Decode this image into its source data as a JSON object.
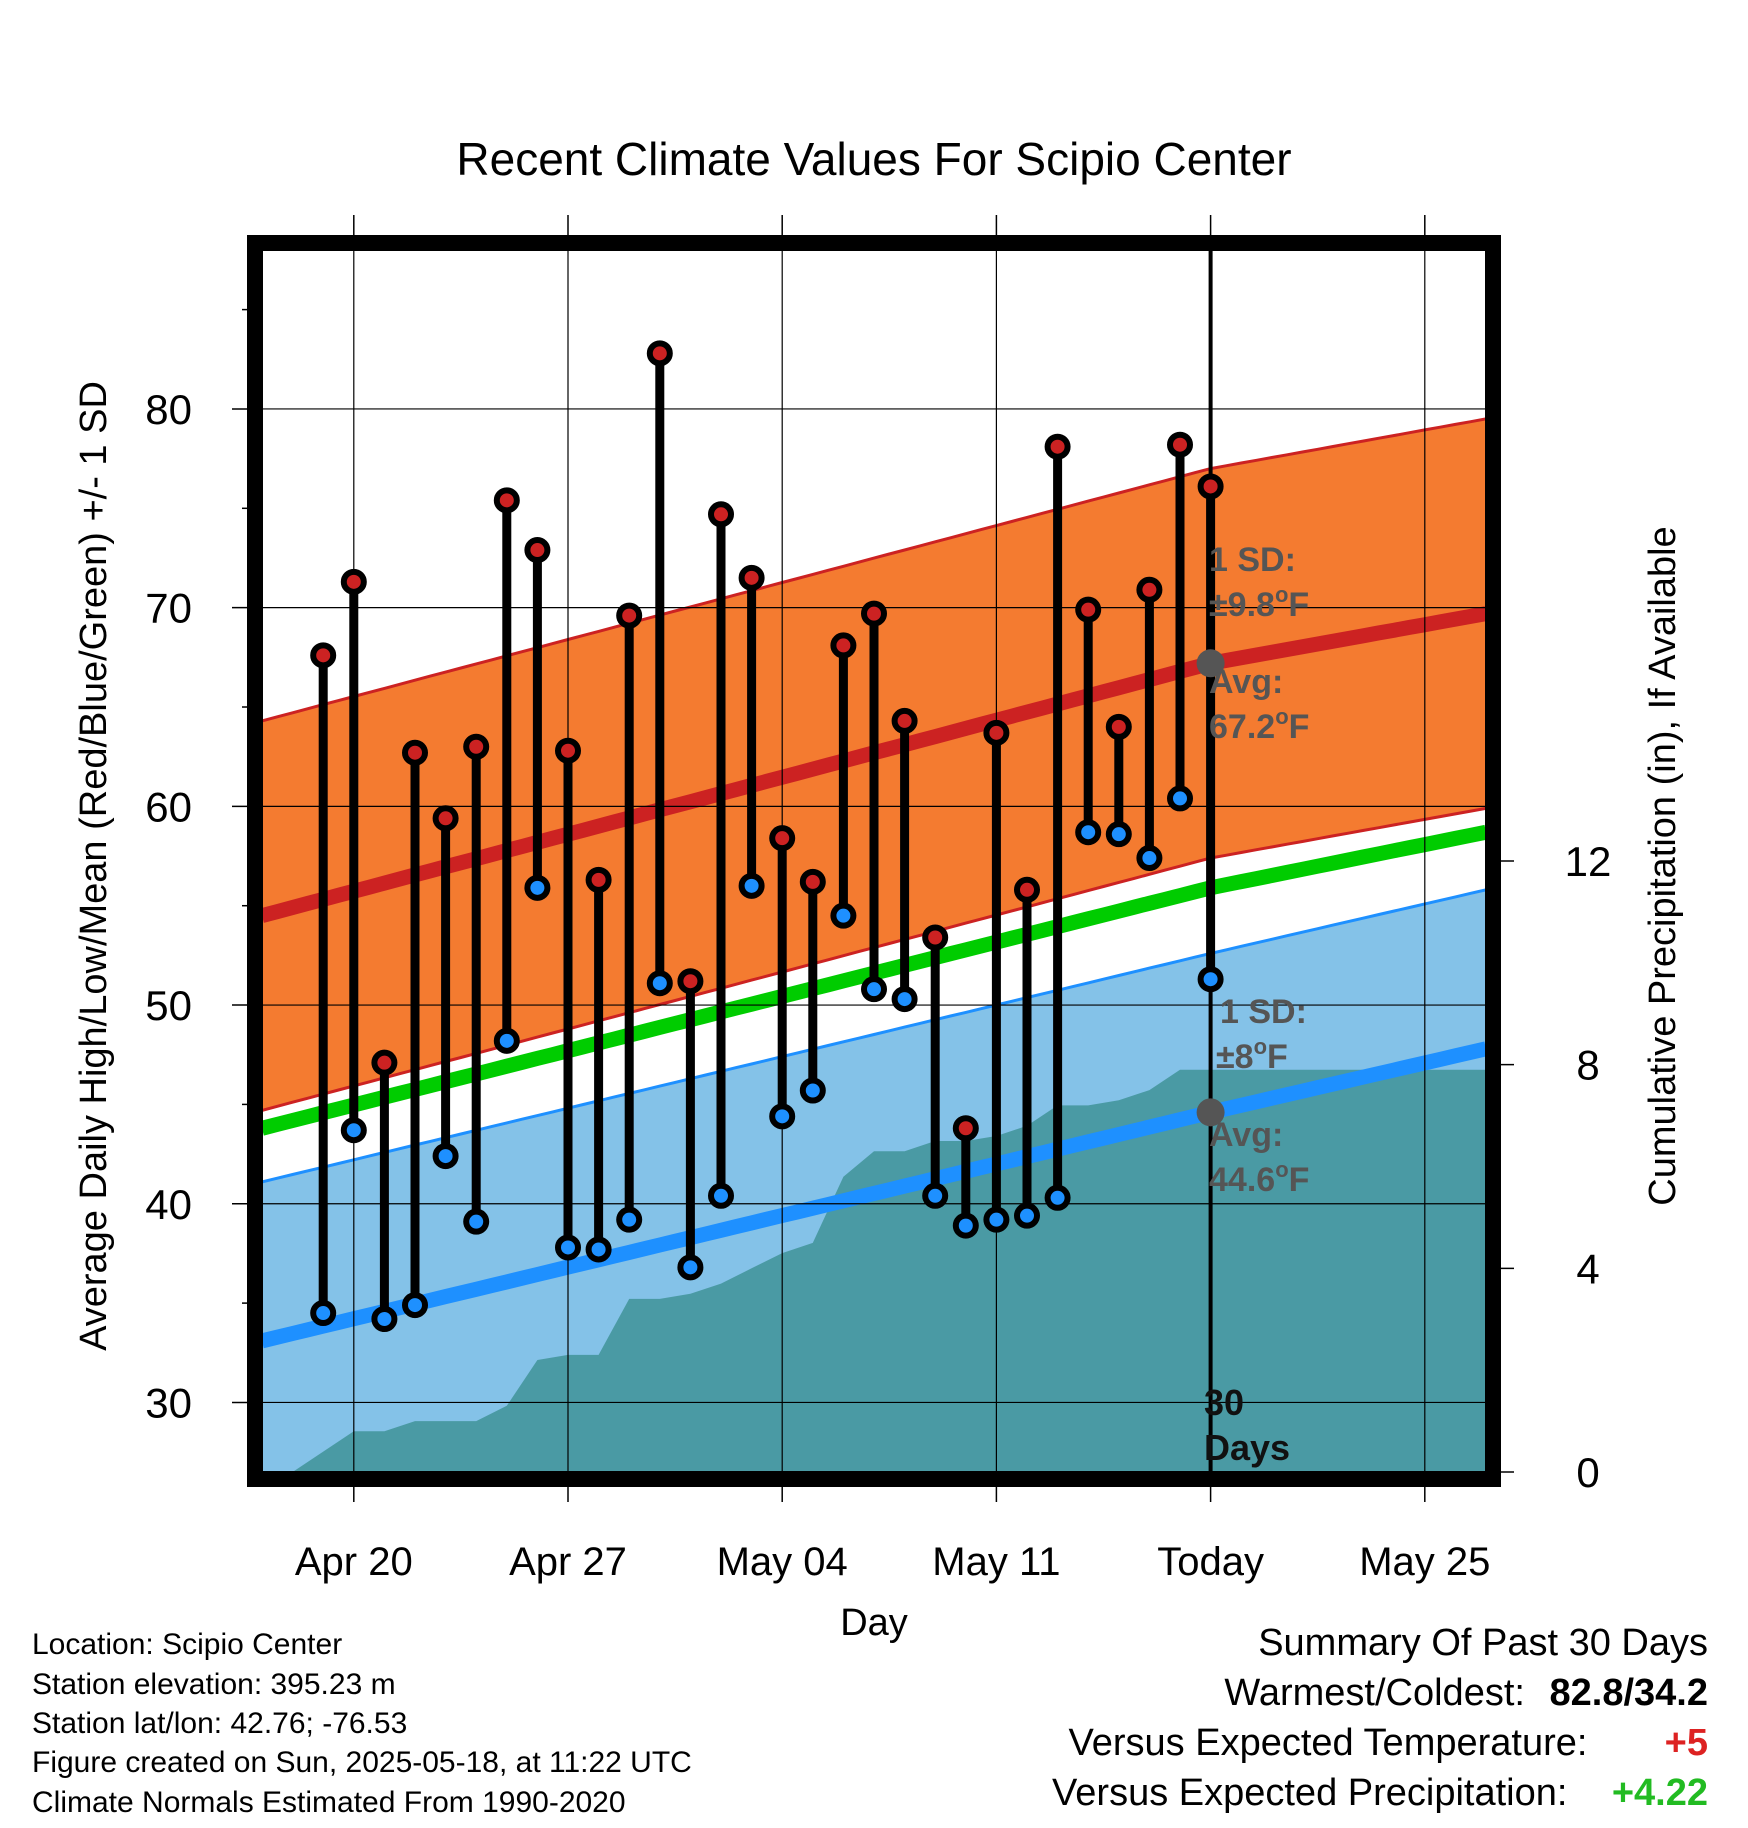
{
  "chart_data": {
    "type": "line",
    "title": "Recent Climate Values For Scipio Center",
    "xlabel": "Day",
    "ylabel": "Average Daily High/Low/Mean (Red/Blue/Green) +/- 1 SD",
    "y2label": "Cumulative Precipitation (in), If Available",
    "ylim": [
      26.5,
      88
    ],
    "y2lim": [
      0,
      24
    ],
    "yticks": [
      "30",
      "40",
      "50",
      "60",
      "70",
      "80"
    ],
    "y2ticks": [
      "0",
      "4",
      "8",
      "12"
    ],
    "x_tick_labels": [
      "Apr 20",
      "Apr 27",
      "May 04",
      "May 11",
      "Today",
      "May 25"
    ],
    "x_tick_days": [
      "2025-04-20",
      "2025-04-27",
      "2025-05-04",
      "2025-05-11",
      "2025-05-18",
      "2025-05-25"
    ],
    "xlim": [
      "2025-04-17",
      "2025-05-27"
    ],
    "today": "2025-05-18",
    "dates": [
      "2025-04-19",
      "2025-04-20",
      "2025-04-21",
      "2025-04-22",
      "2025-04-23",
      "2025-04-24",
      "2025-04-25",
      "2025-04-26",
      "2025-04-27",
      "2025-04-28",
      "2025-04-29",
      "2025-04-30",
      "2025-05-01",
      "2025-05-02",
      "2025-05-03",
      "2025-05-04",
      "2025-05-05",
      "2025-05-06",
      "2025-05-07",
      "2025-05-08",
      "2025-05-09",
      "2025-05-10",
      "2025-05-11",
      "2025-05-12",
      "2025-05-13",
      "2025-05-14",
      "2025-05-15",
      "2025-05-16",
      "2025-05-17",
      "2025-05-18"
    ],
    "series": [
      {
        "name": "Daily High",
        "color": "#cc2222",
        "values": [
          67.6,
          71.3,
          47.1,
          62.7,
          59.4,
          63.0,
          75.4,
          72.9,
          62.8,
          56.3,
          69.6,
          82.8,
          51.2,
          74.7,
          71.5,
          58.4,
          56.2,
          68.1,
          69.7,
          64.3,
          53.4,
          43.8,
          63.7,
          55.8,
          78.1,
          69.9,
          64.0,
          70.9,
          78.2,
          76.1
        ]
      },
      {
        "name": "Daily Low",
        "color": "#1e90ff",
        "values": [
          34.5,
          43.7,
          34.2,
          34.9,
          42.4,
          39.1,
          48.2,
          55.9,
          37.8,
          37.7,
          39.2,
          51.1,
          36.8,
          40.4,
          56.0,
          44.4,
          45.7,
          54.5,
          50.8,
          50.3,
          40.4,
          38.9,
          39.2,
          39.4,
          40.3,
          58.7,
          58.6,
          57.4,
          60.4,
          51.3
        ]
      },
      {
        "name": "Average High",
        "color": "#cc2222",
        "x": [
          "2025-04-17",
          "2025-05-18",
          "2025-05-27"
        ],
        "values": [
          54.5,
          67.2,
          69.7
        ]
      },
      {
        "name": "Average Low",
        "color": "#1e90ff",
        "x": [
          "2025-04-17",
          "2025-05-18",
          "2025-05-27"
        ],
        "values": [
          33.1,
          44.6,
          47.8
        ]
      },
      {
        "name": "Average Mean",
        "color": "#00cc00",
        "x": [
          "2025-04-17",
          "2025-05-18",
          "2025-05-27"
        ],
        "values": [
          43.8,
          55.9,
          58.7
        ]
      },
      {
        "name": "Cumulative Precipitation",
        "color": "#4a9aa4",
        "x": [
          "2025-04-18",
          "2025-04-19",
          "2025-04-20",
          "2025-04-21",
          "2025-04-22",
          "2025-04-23",
          "2025-04-24",
          "2025-04-25",
          "2025-04-26",
          "2025-04-27",
          "2025-04-28",
          "2025-04-29",
          "2025-04-30",
          "2025-05-01",
          "2025-05-02",
          "2025-05-03",
          "2025-05-04",
          "2025-05-05",
          "2025-05-06",
          "2025-05-07",
          "2025-05-08",
          "2025-05-09",
          "2025-05-10",
          "2025-05-11",
          "2025-05-12",
          "2025-05-13",
          "2025-05-14",
          "2025-05-15",
          "2025-05-16",
          "2025-05-17",
          "2025-05-18",
          "2025-05-27"
        ],
        "values": [
          0,
          0.4,
          0.8,
          0.8,
          1.0,
          1.0,
          1.0,
          1.3,
          2.2,
          2.3,
          2.3,
          3.4,
          3.4,
          3.5,
          3.7,
          4.0,
          4.3,
          4.5,
          5.8,
          6.3,
          6.3,
          6.5,
          6.5,
          6.6,
          6.8,
          7.2,
          7.2,
          7.3,
          7.5,
          7.9,
          7.9,
          7.9
        ]
      }
    ],
    "sd_high": 9.8,
    "sd_low": 8,
    "annotations": {
      "high_sd_label": "1 SD:",
      "high_sd_value": "±9.8",
      "high_avg_label": "Avg:",
      "high_avg_value": "67.2",
      "low_sd_label": "1 SD:",
      "low_sd_value": "±8",
      "low_avg_label": "Avg:",
      "low_avg_value": "44.6",
      "degree_mark": "o",
      "unit": "F",
      "window_number": "30",
      "window_unit": "Days"
    },
    "colors": {
      "high_band": "#f47b30",
      "low_band": "#84c2e8",
      "high_line": "#cc2222",
      "low_line": "#1e90ff",
      "mean_line": "#00cc00",
      "precip": "#4a9aa4",
      "annotation_text": "#555555"
    },
    "grid": true
  },
  "footer": {
    "location": "Location: Scipio Center",
    "elevation": "Station elevation: 395.23 m",
    "latlon": "Station lat/lon: 42.76; -76.53",
    "created": "Figure created on Sun, 2025-05-18, at 11:22 UTC",
    "normals": "Climate Normals Estimated From 1990-2020"
  },
  "summary": {
    "title": "Summary Of Past 30 Days",
    "warm_cold_label": "Warmest/Coldest:",
    "warm_cold_value": "82.8/34.2",
    "temp_label": "Versus Expected Temperature:",
    "temp_value": "+5",
    "temp_color": "#dd2222",
    "precip_label": "Versus Expected Precipitation:",
    "precip_value": "+4.22",
    "precip_color": "#22bb22"
  }
}
